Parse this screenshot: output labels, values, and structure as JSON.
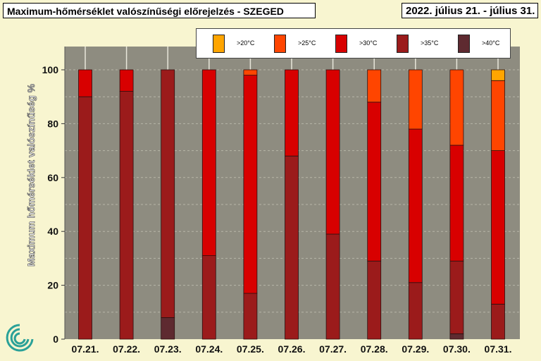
{
  "header": {
    "title": "Maximum-hőmérséklet valószínűségi előrejelzés - SZEGED",
    "date_range": "2022. július 21. - július 31."
  },
  "chart_data": {
    "type": "bar",
    "stacked": true,
    "title": "Maximum-hőmérséklet valószínűségi előrejelzés - SZEGED",
    "ylabel": "Maximum hőmérséklet valószínűség %",
    "xlabel": "",
    "ylim": [
      0,
      100
    ],
    "yticks": [
      0,
      20,
      40,
      60,
      80,
      100
    ],
    "categories": [
      "07.21.",
      "07.22.",
      "07.23.",
      "07.24.",
      "07.25.",
      "07.26.",
      "07.27.",
      "07.28.",
      "07.29.",
      "07.30.",
      "07.31."
    ],
    "legend_position": "top",
    "grid": true,
    "series": [
      {
        "name": ">40°C",
        "color": "#5e2a30",
        "values": [
          0,
          0,
          8,
          0,
          0,
          0,
          0,
          0,
          0,
          2,
          0
        ]
      },
      {
        "name": ">35°C",
        "color": "#9b1b1b",
        "values": [
          90,
          92,
          92,
          31,
          17,
          68,
          39,
          29,
          21,
          27,
          13
        ]
      },
      {
        "name": ">30°C",
        "color": "#d80000",
        "values": [
          10,
          8,
          0,
          69,
          81,
          32,
          61,
          59,
          57,
          43,
          57
        ]
      },
      {
        "name": ">25°C",
        "color": "#ff4500",
        "values": [
          0,
          0,
          0,
          0,
          2,
          0,
          0,
          12,
          22,
          28,
          26
        ]
      },
      {
        "name": ">20°C",
        "color": "#ffa500",
        "values": [
          0,
          0,
          0,
          0,
          0,
          0,
          0,
          0,
          0,
          0,
          4
        ]
      }
    ],
    "legend": [
      {
        "label": ">20°C",
        "color": "#ffa500"
      },
      {
        "label": ">25°C",
        "color": "#ff4500"
      },
      {
        "label": ">30°C",
        "color": "#d80000"
      },
      {
        "label": ">35°C",
        "color": "#9b1b1b"
      },
      {
        "label": ">40°C",
        "color": "#5e2a30"
      }
    ]
  }
}
